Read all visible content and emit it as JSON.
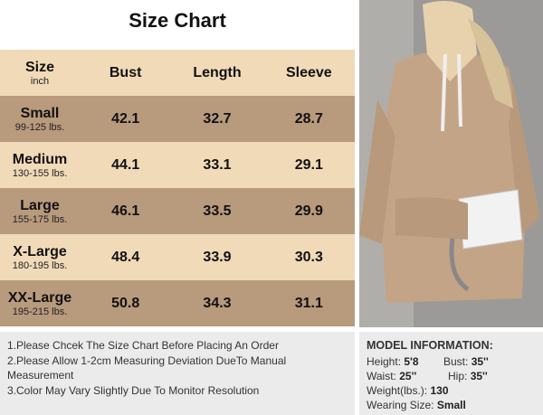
{
  "title": "Size Chart",
  "header": {
    "size": "Size",
    "unit": "inch",
    "bust": "Bust",
    "length": "Length",
    "sleeve": "Sleeve"
  },
  "rows": [
    {
      "size": "Small",
      "weight": "99-125 lbs.",
      "bust": "42.1",
      "length": "32.7",
      "sleeve": "28.7"
    },
    {
      "size": "Medium",
      "weight": "130-155 lbs.",
      "bust": "44.1",
      "length": "33.1",
      "sleeve": "29.1"
    },
    {
      "size": "Large",
      "weight": "155-175 lbs.",
      "bust": "46.1",
      "length": "33.5",
      "sleeve": "29.9"
    },
    {
      "size": "X-Large",
      "weight": "180-195 lbs.",
      "bust": "48.4",
      "length": "33.9",
      "sleeve": "30.3"
    },
    {
      "size": "XX-Large",
      "weight": "195-215 lbs.",
      "bust": "50.8",
      "length": "34.3",
      "sleeve": "31.1"
    }
  ],
  "notes": [
    "1.Please Chcek The Size Chart Before Placing An Order",
    "2.Please Allow 1-2cm Measuring Deviation DueTo Manual Measurement",
    "3.Color May Vary Slightly Due To Monitor Resolution"
  ],
  "model": {
    "heading": "MODEL INFORMATION:",
    "height_label": "Height:",
    "height": "5'8",
    "bust_label": "Bust:",
    "bust": "35''",
    "waist_label": "Waist:",
    "waist": "25''",
    "hip_label": "Hip:",
    "hip": "35''",
    "weight_label": "Weight(lbs.):",
    "weight": "130",
    "size_label": "Wearing Size:",
    "size": "Small"
  },
  "colors": {
    "light_row": "#f0dab8",
    "dark_row": "#b89a7d",
    "hoodie": "#c4a486"
  }
}
